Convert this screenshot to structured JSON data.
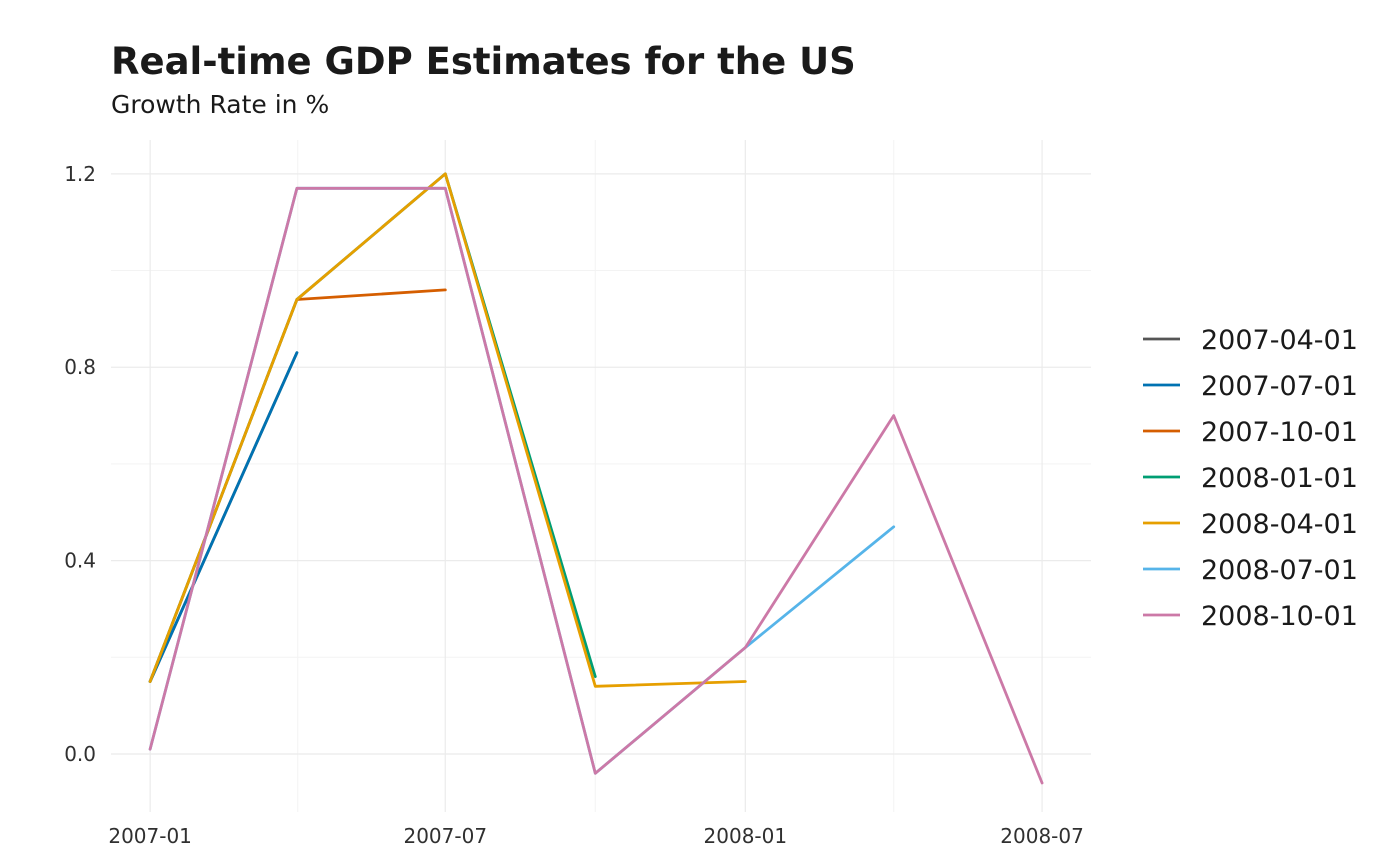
{
  "header": {
    "title": "Real-time GDP Estimates for the US",
    "subtitle": "Growth Rate in %"
  },
  "chart_data": {
    "type": "line",
    "title": "Real-time GDP Estimates for the US",
    "subtitle": "Growth Rate in %",
    "xlabel": "",
    "ylabel": "",
    "x_type": "date",
    "x_ticks": [
      "2007-01-01",
      "2007-07-01",
      "2008-01-01",
      "2008-07-01"
    ],
    "x_tick_labels": [
      "2007-01",
      "2007-07",
      "2008-01",
      "2008-07"
    ],
    "xlim": [
      "2006-12-08",
      "2008-07-31"
    ],
    "y_ticks": [
      0.0,
      0.4,
      0.8,
      1.2
    ],
    "y_tick_labels": [
      "0.0",
      "0.4",
      "0.8",
      "1.2"
    ],
    "ylim": [
      -0.12,
      1.27
    ],
    "grid": true,
    "legend_position": "right",
    "series": [
      {
        "name": "2007-04-01",
        "color": "#555555",
        "points": [
          [
            "2007-01-01",
            0.15
          ],
          [
            "2007-04-01",
            0.83
          ]
        ]
      },
      {
        "name": "2007-07-01",
        "color": "#0072B2",
        "points": [
          [
            "2007-01-01",
            0.15
          ],
          [
            "2007-04-01",
            0.83
          ]
        ]
      },
      {
        "name": "2007-10-01",
        "color": "#D55E00",
        "points": [
          [
            "2007-01-01",
            0.15
          ],
          [
            "2007-04-01",
            0.94
          ],
          [
            "2007-07-01",
            0.96
          ]
        ]
      },
      {
        "name": "2008-01-01",
        "color": "#009E73",
        "points": [
          [
            "2007-01-01",
            0.15
          ],
          [
            "2007-04-01",
            0.94
          ],
          [
            "2007-07-01",
            1.2
          ],
          [
            "2007-10-01",
            0.16
          ]
        ]
      },
      {
        "name": "2008-04-01",
        "color": "#E69F00",
        "points": [
          [
            "2007-01-01",
            0.15
          ],
          [
            "2007-04-01",
            0.94
          ],
          [
            "2007-07-01",
            1.2
          ],
          [
            "2007-10-01",
            0.14
          ],
          [
            "2008-01-01",
            0.15
          ]
        ]
      },
      {
        "name": "2008-07-01",
        "color": "#56B4E9",
        "points": [
          [
            "2007-01-01",
            0.01
          ],
          [
            "2007-04-01",
            1.17
          ],
          [
            "2007-07-01",
            1.17
          ],
          [
            "2007-10-01",
            -0.04
          ],
          [
            "2008-01-01",
            0.22
          ],
          [
            "2008-04-01",
            0.47
          ]
        ]
      },
      {
        "name": "2008-10-01",
        "color": "#CC79A7",
        "points": [
          [
            "2007-01-01",
            0.01
          ],
          [
            "2007-04-01",
            1.17
          ],
          [
            "2007-07-01",
            1.17
          ],
          [
            "2007-10-01",
            -0.04
          ],
          [
            "2008-01-01",
            0.22
          ],
          [
            "2008-04-01",
            0.7
          ],
          [
            "2008-07-01",
            -0.06
          ]
        ]
      }
    ]
  }
}
